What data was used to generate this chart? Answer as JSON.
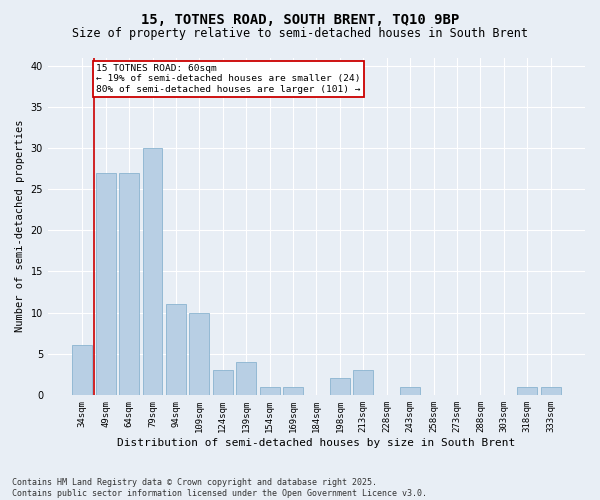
{
  "title": "15, TOTNES ROAD, SOUTH BRENT, TQ10 9BP",
  "subtitle": "Size of property relative to semi-detached houses in South Brent",
  "xlabel": "Distribution of semi-detached houses by size in South Brent",
  "ylabel": "Number of semi-detached properties",
  "categories": [
    "34sqm",
    "49sqm",
    "64sqm",
    "79sqm",
    "94sqm",
    "109sqm",
    "124sqm",
    "139sqm",
    "154sqm",
    "169sqm",
    "184sqm",
    "198sqm",
    "213sqm",
    "228sqm",
    "243sqm",
    "258sqm",
    "273sqm",
    "288sqm",
    "303sqm",
    "318sqm",
    "333sqm"
  ],
  "values": [
    6,
    27,
    27,
    30,
    11,
    10,
    3,
    4,
    1,
    1,
    0,
    2,
    3,
    0,
    1,
    0,
    0,
    0,
    0,
    1,
    1
  ],
  "bar_color": "#b8cfe4",
  "bar_edge_color": "#8ab4d0",
  "property_label": "15 TOTNES ROAD: 60sqm",
  "pct_smaller": 19,
  "pct_larger": 80,
  "count_smaller": 24,
  "count_larger": 101,
  "annotation_box_color": "#ffffff",
  "annotation_box_edge_color": "#cc0000",
  "line_color": "#cc0000",
  "red_line_x": 0.5,
  "ylim": [
    0,
    41
  ],
  "yticks": [
    0,
    5,
    10,
    15,
    20,
    25,
    30,
    35,
    40
  ],
  "footer": "Contains HM Land Registry data © Crown copyright and database right 2025.\nContains public sector information licensed under the Open Government Licence v3.0.",
  "bg_color": "#e8eef5",
  "title_fontsize": 10,
  "subtitle_fontsize": 8.5,
  "ylabel_fontsize": 7.5,
  "xlabel_fontsize": 8,
  "tick_fontsize": 6.5,
  "annot_fontsize": 6.8,
  "footer_fontsize": 6,
  "grid_color": "#ffffff"
}
